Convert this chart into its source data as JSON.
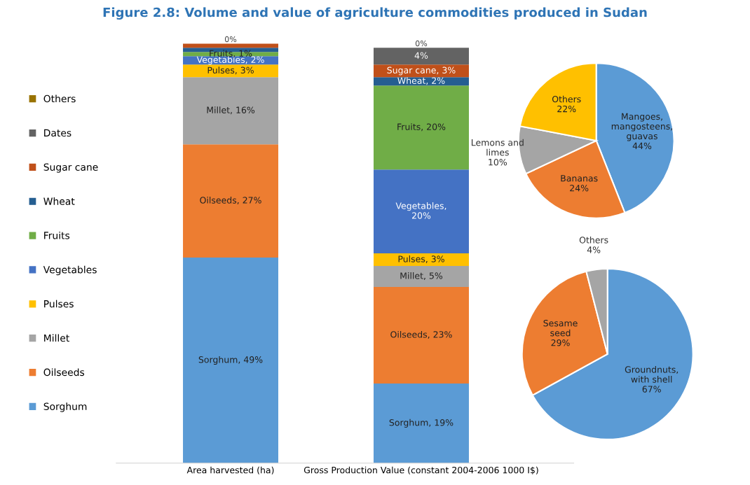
{
  "chart_data": [
    {
      "type": "bar",
      "title": "Figure 2.8: Volume and value of agriculture commodities produced in Sudan",
      "stacked": true,
      "legend": "left",
      "tick_labels": "x",
      "ylim": [
        0,
        100
      ],
      "categories": [
        "Area harvested (ha)",
        "Gross Production Value (constant 2004-2006 1000 I$)"
      ],
      "series": [
        {
          "name": "Sorghum",
          "color": "#5b9bd5",
          "values": [
            49,
            19
          ],
          "value_labels": [
            "Sorghum, 49%",
            "Sorghum, 19%"
          ]
        },
        {
          "name": "Oilseeds",
          "color": "#ed7d31",
          "values": [
            27,
            23
          ],
          "value_labels": [
            "Oilseeds, 27%",
            "Oilseeds, 23%"
          ]
        },
        {
          "name": "Millet",
          "color": "#a5a5a5",
          "values": [
            16,
            5
          ],
          "value_labels": [
            "Millet, 16%",
            "Millet, 5%"
          ]
        },
        {
          "name": "Pulses",
          "color": "#ffc000",
          "values": [
            3,
            3
          ],
          "value_labels": [
            "Pulses, 3%",
            "Pulses, 3%"
          ]
        },
        {
          "name": "Vegetables",
          "color": "#4472c4",
          "values": [
            2,
            20
          ],
          "value_labels": [
            "Vegetables, 2%",
            "Vegetables,\n20%"
          ]
        },
        {
          "name": "Fruits",
          "color": "#70ad47",
          "values": [
            1,
            20
          ],
          "value_labels": [
            "Fruits, 1%",
            "Fruits, 20%"
          ]
        },
        {
          "name": "Wheat",
          "color": "#255e91",
          "values": [
            1,
            2
          ],
          "value_labels": [
            null,
            "Wheat, 2%"
          ]
        },
        {
          "name": "Sugar cane",
          "color": "#c0501a",
          "values": [
            1,
            3
          ],
          "value_labels": [
            null,
            "Sugar cane, 3%"
          ]
        },
        {
          "name": "Dates",
          "color": "#636363",
          "values": [
            0,
            4
          ],
          "value_labels": [
            null,
            "4%"
          ]
        },
        {
          "name": "Others",
          "color": "#997300",
          "values": [
            0,
            0
          ],
          "value_labels": [
            "0%",
            "0%"
          ]
        }
      ]
    },
    {
      "type": "pie",
      "categories": [
        "Mangoes,\nmangosteens,\nguavas",
        "Bananas",
        "Lemons and\nlimes",
        "Others"
      ],
      "values": [
        44,
        24,
        10,
        22
      ],
      "value_labels": [
        "44%",
        "24%",
        "10%",
        "22%"
      ],
      "colors": [
        "#5b9bd5",
        "#ed7d31",
        "#a5a5a5",
        "#ffc000"
      ]
    },
    {
      "type": "pie",
      "categories": [
        "Groundnuts,\nwith shell",
        "Sesame\nseed",
        "Others"
      ],
      "values": [
        67,
        29,
        4
      ],
      "value_labels": [
        "67%",
        "29%",
        "4%"
      ],
      "colors": [
        "#5b9bd5",
        "#ed7d31",
        "#a5a5a5"
      ]
    }
  ]
}
